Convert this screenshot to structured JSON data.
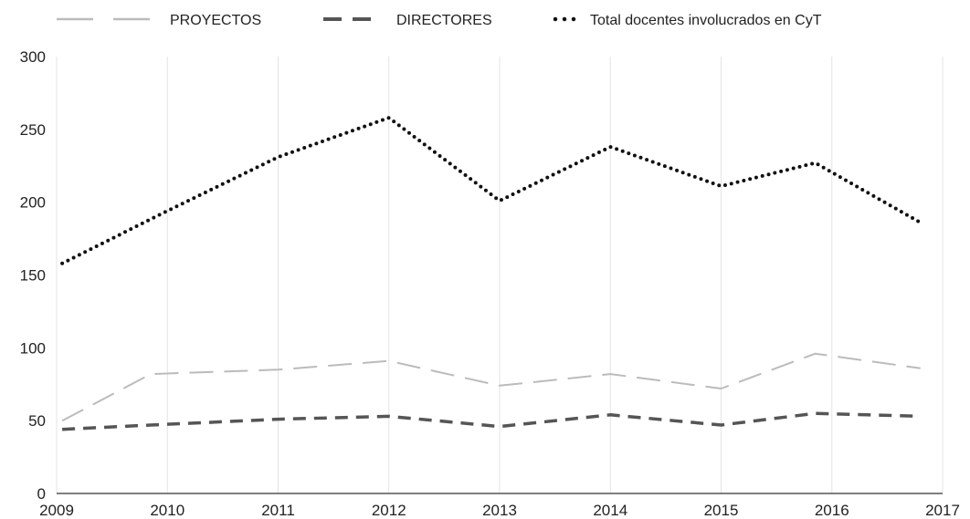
{
  "chart_data": {
    "type": "line",
    "title": "",
    "xlabel": "",
    "ylabel": "",
    "x": [
      "2009",
      "2010",
      "2011",
      "2012",
      "2013",
      "2014",
      "2015",
      "2016",
      "2017"
    ],
    "x_ticks": [
      "2009",
      "2010",
      "2011",
      "2012",
      "2013",
      "2014",
      "2015",
      "2016",
      "2017"
    ],
    "y_ticks": [
      0,
      50,
      100,
      150,
      200,
      250,
      300
    ],
    "ylim": [
      0,
      300
    ],
    "grid": "vertical",
    "legend_position": "top",
    "series": [
      {
        "name": "PROYECTOS",
        "style": "long-dash",
        "color": "#bbbbbb",
        "points": [
          [
            2009.05,
            50
          ],
          [
            2009.85,
            82
          ],
          [
            2011.0,
            85
          ],
          [
            2012.0,
            91
          ],
          [
            2013.0,
            74
          ],
          [
            2014.0,
            82
          ],
          [
            2015.0,
            72
          ],
          [
            2015.85,
            96
          ],
          [
            2016.8,
            86
          ]
        ]
      },
      {
        "name": "DIRECTORES",
        "style": "dash",
        "color": "#555555",
        "points": [
          [
            2009.05,
            44
          ],
          [
            2009.85,
            47
          ],
          [
            2011.0,
            51
          ],
          [
            2012.0,
            53
          ],
          [
            2013.0,
            46
          ],
          [
            2014.0,
            54
          ],
          [
            2015.0,
            47
          ],
          [
            2015.85,
            55
          ],
          [
            2016.8,
            53
          ]
        ]
      },
      {
        "name": "Total docentes involucrados en CyT",
        "style": "dotted",
        "color": "#111111",
        "points": [
          [
            2009.05,
            158
          ],
          [
            2010.0,
            194
          ],
          [
            2011.0,
            231
          ],
          [
            2012.0,
            258
          ],
          [
            2013.0,
            201
          ],
          [
            2014.0,
            238
          ],
          [
            2015.0,
            211
          ],
          [
            2015.85,
            227
          ],
          [
            2016.8,
            186
          ]
        ]
      }
    ]
  }
}
